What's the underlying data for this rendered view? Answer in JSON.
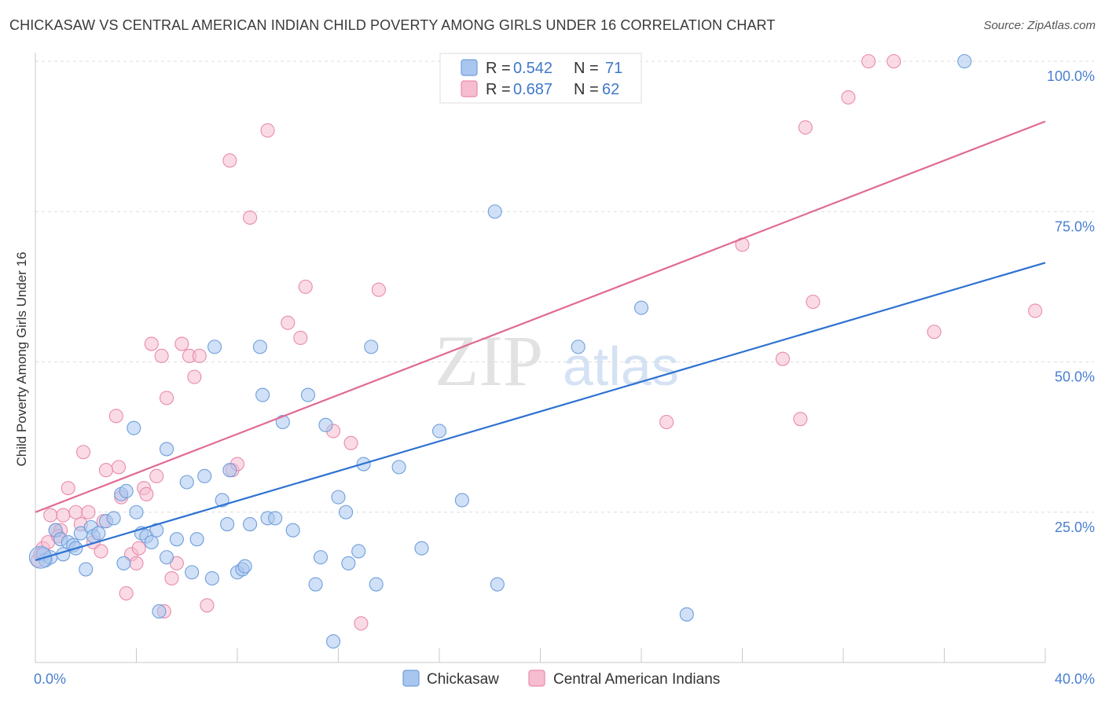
{
  "title": "CHICKASAW VS CENTRAL AMERICAN INDIAN CHILD POVERTY AMONG GIRLS UNDER 16 CORRELATION CHART",
  "source": "Source: ZipAtlas.com",
  "watermark": {
    "part1": "ZIP",
    "part2": "atlas"
  },
  "colors": {
    "chickasaw_fill": "#a9c6ee",
    "chickasaw_stroke": "#6f9fdc",
    "chickasaw_line": "#2e72d2",
    "central_fill": "#f6bdd0",
    "central_stroke": "#e98aab",
    "central_line": "#e06a94",
    "tick_text": "#4a7fd0",
    "grid": "#dddddd"
  },
  "legend": {
    "rows": [
      {
        "r_label": "R =",
        "r_value": "0.542",
        "n_label": "N =",
        "n_value": "71"
      },
      {
        "r_label": "R =",
        "r_value": "0.687",
        "n_label": "N =",
        "n_value": "62"
      }
    ]
  },
  "chart_data": {
    "type": "scatter",
    "title": "CHICKASAW VS CENTRAL AMERICAN INDIAN CHILD POVERTY AMONG GIRLS UNDER 16 CORRELATION CHART",
    "xlabel": "",
    "ylabel": "Child Poverty Among Girls Under 16",
    "xlim": [
      0,
      40
    ],
    "ylim": [
      0,
      100
    ],
    "x_tick_labels": [
      "0.0%",
      "40.0%"
    ],
    "y_ticks": [
      25,
      50,
      75,
      100
    ],
    "y_tick_labels": [
      "25.0%",
      "50.0%",
      "75.0%",
      "100.0%"
    ],
    "grid": true,
    "legend_position": "top-center",
    "series": [
      {
        "name": "Chickasaw",
        "r": 0.542,
        "n": 71,
        "trend": {
          "x": [
            0,
            40
          ],
          "y": [
            17.0,
            66.5
          ]
        },
        "points": [
          {
            "x": 0.3,
            "y": 18.0
          },
          {
            "x": 0.4,
            "y": 17.0
          },
          {
            "x": 0.6,
            "y": 17.5
          },
          {
            "x": 0.8,
            "y": 22.0
          },
          {
            "x": 1.0,
            "y": 20.5
          },
          {
            "x": 1.1,
            "y": 18.0
          },
          {
            "x": 1.3,
            "y": 20.0
          },
          {
            "x": 1.5,
            "y": 19.5
          },
          {
            "x": 1.6,
            "y": 19.0
          },
          {
            "x": 1.8,
            "y": 21.5
          },
          {
            "x": 2.0,
            "y": 15.5
          },
          {
            "x": 2.2,
            "y": 22.5
          },
          {
            "x": 2.3,
            "y": 21.0
          },
          {
            "x": 2.5,
            "y": 21.5
          },
          {
            "x": 2.8,
            "y": 23.5
          },
          {
            "x": 3.1,
            "y": 24.0
          },
          {
            "x": 3.4,
            "y": 28.0
          },
          {
            "x": 3.5,
            "y": 16.5
          },
          {
            "x": 3.6,
            "y": 28.5
          },
          {
            "x": 3.9,
            "y": 39.0
          },
          {
            "x": 4.0,
            "y": 25.0
          },
          {
            "x": 4.2,
            "y": 21.5
          },
          {
            "x": 4.4,
            "y": 21.0
          },
          {
            "x": 4.6,
            "y": 20.0
          },
          {
            "x": 4.8,
            "y": 22.0
          },
          {
            "x": 4.9,
            "y": 8.5
          },
          {
            "x": 5.2,
            "y": 17.5
          },
          {
            "x": 5.2,
            "y": 35.5
          },
          {
            "x": 5.6,
            "y": 20.5
          },
          {
            "x": 6.0,
            "y": 30.0
          },
          {
            "x": 6.2,
            "y": 15.0
          },
          {
            "x": 6.4,
            "y": 20.5
          },
          {
            "x": 6.7,
            "y": 31.0
          },
          {
            "x": 7.0,
            "y": 14.0
          },
          {
            "x": 7.1,
            "y": 52.5
          },
          {
            "x": 7.4,
            "y": 27.0
          },
          {
            "x": 7.6,
            "y": 23.0
          },
          {
            "x": 7.7,
            "y": 32.0
          },
          {
            "x": 8.0,
            "y": 15.0
          },
          {
            "x": 8.2,
            "y": 15.5
          },
          {
            "x": 8.3,
            "y": 16.0
          },
          {
            "x": 8.5,
            "y": 23.0
          },
          {
            "x": 8.9,
            "y": 52.5
          },
          {
            "x": 9.0,
            "y": 44.5
          },
          {
            "x": 9.2,
            "y": 24.0
          },
          {
            "x": 9.5,
            "y": 24.0
          },
          {
            "x": 9.8,
            "y": 40.0
          },
          {
            "x": 10.2,
            "y": 22.0
          },
          {
            "x": 10.8,
            "y": 44.5
          },
          {
            "x": 11.1,
            "y": 13.0
          },
          {
            "x": 11.3,
            "y": 17.5
          },
          {
            "x": 11.5,
            "y": 39.5
          },
          {
            "x": 12.0,
            "y": 27.5
          },
          {
            "x": 12.3,
            "y": 25.0
          },
          {
            "x": 12.4,
            "y": 16.5
          },
          {
            "x": 11.8,
            "y": 3.5
          },
          {
            "x": 12.8,
            "y": 18.5
          },
          {
            "x": 13.3,
            "y": 52.5
          },
          {
            "x": 13.0,
            "y": 33.0
          },
          {
            "x": 13.5,
            "y": 13.0
          },
          {
            "x": 14.4,
            "y": 32.5
          },
          {
            "x": 15.3,
            "y": 19.0
          },
          {
            "x": 16.0,
            "y": 38.5
          },
          {
            "x": 16.9,
            "y": 27.0
          },
          {
            "x": 18.2,
            "y": 75.0
          },
          {
            "x": 18.3,
            "y": 13.0
          },
          {
            "x": 21.5,
            "y": 52.5
          },
          {
            "x": 24.0,
            "y": 59.0
          },
          {
            "x": 25.8,
            "y": 8.0
          },
          {
            "x": 36.8,
            "y": 100.0
          },
          {
            "x": 0.2,
            "y": 17.5
          }
        ]
      },
      {
        "name": "Central American Indians",
        "r": 0.687,
        "n": 62,
        "trend": {
          "x": [
            0,
            40
          ],
          "y": [
            25.0,
            90.0
          ]
        },
        "points": [
          {
            "x": 0.1,
            "y": 17.0
          },
          {
            "x": 0.3,
            "y": 19.0
          },
          {
            "x": 0.5,
            "y": 20.0
          },
          {
            "x": 0.6,
            "y": 24.5
          },
          {
            "x": 0.8,
            "y": 22.0
          },
          {
            "x": 1.0,
            "y": 22.0
          },
          {
            "x": 1.1,
            "y": 24.5
          },
          {
            "x": 1.3,
            "y": 29.0
          },
          {
            "x": 1.6,
            "y": 25.0
          },
          {
            "x": 1.8,
            "y": 23.0
          },
          {
            "x": 1.9,
            "y": 35.0
          },
          {
            "x": 2.1,
            "y": 25.0
          },
          {
            "x": 2.3,
            "y": 20.0
          },
          {
            "x": 2.6,
            "y": 18.5
          },
          {
            "x": 2.7,
            "y": 23.5
          },
          {
            "x": 2.8,
            "y": 32.0
          },
          {
            "x": 3.2,
            "y": 41.0
          },
          {
            "x": 3.3,
            "y": 32.5
          },
          {
            "x": 3.4,
            "y": 27.5
          },
          {
            "x": 3.6,
            "y": 11.5
          },
          {
            "x": 3.8,
            "y": 18.0
          },
          {
            "x": 4.0,
            "y": 16.5
          },
          {
            "x": 4.1,
            "y": 19.0
          },
          {
            "x": 4.3,
            "y": 29.0
          },
          {
            "x": 4.4,
            "y": 28.0
          },
          {
            "x": 4.6,
            "y": 53.0
          },
          {
            "x": 4.8,
            "y": 31.0
          },
          {
            "x": 5.0,
            "y": 51.0
          },
          {
            "x": 5.1,
            "y": 8.5
          },
          {
            "x": 5.2,
            "y": 44.0
          },
          {
            "x": 5.4,
            "y": 14.0
          },
          {
            "x": 5.6,
            "y": 16.5
          },
          {
            "x": 5.8,
            "y": 53.0
          },
          {
            "x": 6.1,
            "y": 51.0
          },
          {
            "x": 6.3,
            "y": 47.5
          },
          {
            "x": 6.5,
            "y": 51.0
          },
          {
            "x": 6.8,
            "y": 9.5
          },
          {
            "x": 7.7,
            "y": 83.5
          },
          {
            "x": 7.8,
            "y": 32.0
          },
          {
            "x": 8.0,
            "y": 33.0
          },
          {
            "x": 8.5,
            "y": 74.0
          },
          {
            "x": 9.2,
            "y": 88.5
          },
          {
            "x": 10.0,
            "y": 56.5
          },
          {
            "x": 10.5,
            "y": 54.0
          },
          {
            "x": 10.7,
            "y": 62.5
          },
          {
            "x": 11.8,
            "y": 38.5
          },
          {
            "x": 12.5,
            "y": 36.5
          },
          {
            "x": 12.9,
            "y": 6.5
          },
          {
            "x": 13.6,
            "y": 62.0
          },
          {
            "x": 25.0,
            "y": 40.0
          },
          {
            "x": 28.0,
            "y": 69.5
          },
          {
            "x": 29.6,
            "y": 50.5
          },
          {
            "x": 30.3,
            "y": 40.5
          },
          {
            "x": 30.5,
            "y": 89.0
          },
          {
            "x": 30.8,
            "y": 60.0
          },
          {
            "x": 32.2,
            "y": 94.0
          },
          {
            "x": 33.0,
            "y": 100.0
          },
          {
            "x": 34.0,
            "y": 100.0
          },
          {
            "x": 35.6,
            "y": 55.0
          },
          {
            "x": 39.6,
            "y": 58.5
          },
          {
            "x": 0.2,
            "y": 18.0
          },
          {
            "x": 0.9,
            "y": 21.0
          }
        ]
      }
    ]
  },
  "bottom_legend": [
    {
      "label": "Chickasaw"
    },
    {
      "label": "Central American Indians"
    }
  ]
}
